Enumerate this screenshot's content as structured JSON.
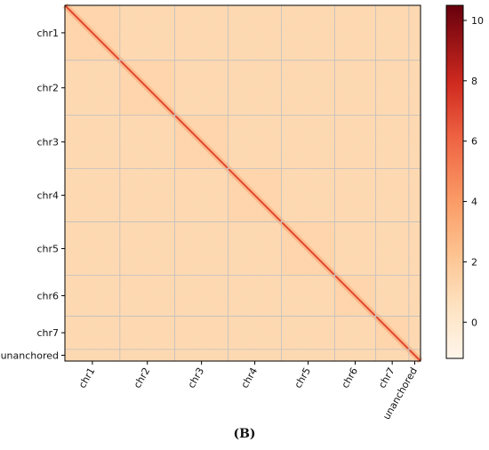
{
  "chart_data": {
    "type": "heatmap",
    "title": "",
    "xlabel": "",
    "ylabel": "",
    "categories": [
      "chr1",
      "chr2",
      "chr3",
      "chr4",
      "chr5",
      "chr6",
      "chr7",
      "unanchored"
    ],
    "block_fractions": [
      0.132,
      0.132,
      0.128,
      0.128,
      0.128,
      0.098,
      0.08,
      0.028
    ],
    "colorbar": {
      "min": -1.2,
      "max": 10.5,
      "ticks": [
        0,
        2,
        4,
        6,
        8,
        10
      ],
      "colors": [
        "#fff5eb",
        "#fdd9ab",
        "#fdae6b",
        "#f4744b",
        "#d6281f",
        "#67000d"
      ]
    },
    "background_value": 1.2,
    "diagonal_value": 5.5,
    "grid_color": "#bfbfbf"
  },
  "panel_label": "(B)"
}
